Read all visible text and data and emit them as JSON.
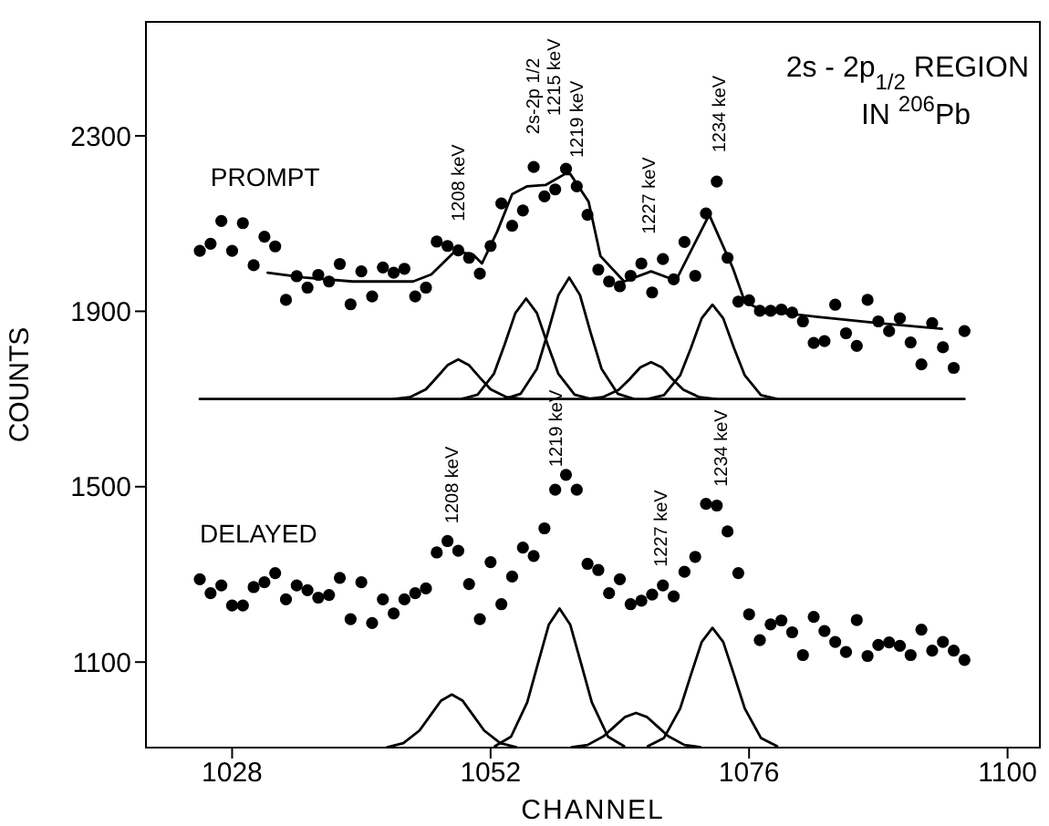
{
  "chart_data": {
    "type": "scatter",
    "title": "2s - 2p$_{1/2}$ REGION",
    "subtitle": "IN $^{206}$Pb",
    "xlabel": "CHANNEL",
    "ylabel": "COUNTS",
    "xlim": [
      1020,
      1103
    ],
    "xticks": [
      1028,
      1052,
      1076,
      1100
    ],
    "ylim": [
      905,
      2560
    ],
    "yticks": [
      1100,
      1500,
      1900,
      2300
    ],
    "grid": false,
    "legend": false,
    "line_style": "solid",
    "x": [
      1025,
      1026,
      1027,
      1028,
      1029,
      1030,
      1031,
      1032,
      1033,
      1034,
      1035,
      1036,
      1037,
      1038,
      1039,
      1040,
      1041,
      1042,
      1043,
      1044,
      1045,
      1046,
      1047,
      1048,
      1049,
      1050,
      1051,
      1052,
      1053,
      1054,
      1055,
      1056,
      1057,
      1058,
      1059,
      1060,
      1061,
      1062,
      1063,
      1064,
      1065,
      1066,
      1067,
      1068,
      1069,
      1070,
      1071,
      1072,
      1073,
      1074,
      1075,
      1076,
      1077,
      1078,
      1079,
      1080,
      1081,
      1082,
      1083,
      1084,
      1085,
      1086,
      1087,
      1088,
      1089,
      1090,
      1091,
      1092,
      1093,
      1094,
      1095,
      1096
    ],
    "series": [
      {
        "color": "#000000",
        "marker": "circle",
        "values": [
          2038,
          2054,
          2106,
          2038,
          2101,
          2005,
          2070,
          2048,
          1926,
          1980,
          1954,
          1983,
          1968,
          2008,
          1916,
          1991,
          1934,
          2000,
          1988,
          1997,
          1934,
          1954,
          2059,
          2049,
          2039,
          2022,
          1986,
          2049,
          2146,
          2095,
          2130,
          2229,
          2162,
          2178,
          2225,
          2185,
          2120,
          1995,
          1968,
          1957,
          1981,
          2009,
          1943,
          2019,
          1973,
          2058,
          1981,
          2123,
          2196,
          2022,
          1922,
          1925,
          1901,
          1901,
          1904,
          1897,
          1877,
          1828,
          1832,
          1915,
          1850,
          1821,
          1926,
          1877,
          1855,
          1884,
          1829,
          1779,
          1873,
          1818,
          1771,
          1855
        ]
      },
      {
        "color": "#000000",
        "marker": "circle",
        "values": [
          1289,
          1257,
          1275,
          1229,
          1229,
          1271,
          1282,
          1303,
          1243,
          1275,
          1264,
          1247,
          1253,
          1292,
          1198,
          1282,
          1189,
          1243,
          1211,
          1243,
          1257,
          1268,
          1350,
          1376,
          1354,
          1278,
          1198,
          1328,
          1232,
          1295,
          1361,
          1342,
          1405,
          1493,
          1527,
          1493,
          1324,
          1310,
          1257,
          1289,
          1232,
          1240,
          1254,
          1275,
          1250,
          1306,
          1340,
          1461,
          1457,
          1398,
          1303,
          1209,
          1150,
          1186,
          1195,
          1168,
          1116,
          1203,
          1171,
          1146,
          1123,
          1196,
          1114,
          1139,
          1145,
          1137,
          1116,
          1174,
          1126,
          1146,
          1126,
          1105
        ]
      },
      {
        "type": "line",
        "color": "#000000",
        "x": [
          1031.3,
          1034.7,
          1039.2,
          1044.8,
          1046.5,
          1048.7,
          1050.4,
          1051.2,
          1052.6,
          1054.0,
          1055.4,
          1057.1,
          1058.9,
          1059.4,
          1061.1,
          1062.2,
          1064.4,
          1066.9,
          1069.2,
          1072.3,
          1074.5,
          1075.6,
          1077.3,
          1082.4,
          1088.0,
          1093.9
        ],
        "values": [
          1988,
          1977,
          1968,
          1968,
          1984,
          2037,
          2029,
          2009,
          2081,
          2167,
          2185,
          2188,
          2213,
          2213,
          2150,
          2026,
          1968,
          1991,
          1970,
          2120,
          1998,
          1922,
          1901,
          1887,
          1873,
          1860
        ]
      },
      {
        "type": "line",
        "color": "#000000",
        "x": [
          1025,
          1096
        ],
        "values": [
          1700,
          1700
        ]
      },
      {
        "type": "line",
        "color": "#000000",
        "x": [
          1043,
          1044.5,
          1046,
          1047,
          1048,
          1049,
          1050,
          1051,
          1052,
          1053.5,
          1055
        ],
        "values": [
          1700,
          1704,
          1722,
          1749,
          1777,
          1790,
          1777,
          1749,
          1722,
          1704,
          1700
        ]
      },
      {
        "type": "line",
        "color": "#000000",
        "x": [
          1049.3,
          1050.8,
          1052.3,
          1053.3,
          1054.3,
          1055.3,
          1056.3,
          1057.3,
          1058.3,
          1059.8,
          1061.3
        ],
        "values": [
          1700,
          1710,
          1757,
          1824,
          1896,
          1929,
          1896,
          1824,
          1757,
          1710,
          1700
        ]
      },
      {
        "type": "line",
        "color": "#000000",
        "x": [
          1053.3,
          1054.8,
          1056.3,
          1057.3,
          1058.3,
          1059.3,
          1060.3,
          1061.3,
          1062.3,
          1063.8,
          1065.3
        ],
        "values": [
          1700,
          1712,
          1769,
          1850,
          1937,
          1977,
          1937,
          1850,
          1769,
          1712,
          1700
        ]
      },
      {
        "type": "line",
        "color": "#000000",
        "x": [
          1060.9,
          1062.4,
          1063.9,
          1064.9,
          1065.9,
          1066.9,
          1067.9,
          1068.9,
          1069.9,
          1071.4,
          1072.9
        ],
        "values": [
          1700,
          1704,
          1721,
          1745,
          1772,
          1784,
          1772,
          1745,
          1721,
          1704,
          1700
        ]
      },
      {
        "type": "line",
        "color": "#000000",
        "x": [
          1066.6,
          1068.1,
          1069.6,
          1070.6,
          1071.6,
          1072.6,
          1073.6,
          1074.6,
          1075.6,
          1077.1,
          1078.6
        ],
        "values": [
          1700,
          1709,
          1754,
          1816,
          1884,
          1915,
          1884,
          1816,
          1754,
          1709,
          1700
        ]
      },
      {
        "type": "line",
        "color": "#000000",
        "x": [
          1042.4,
          1043.9,
          1045.4,
          1046.4,
          1047.4,
          1048.4,
          1049.4,
          1050.4,
          1051.4,
          1052.9,
          1054.4
        ],
        "values": [
          906,
          915,
          944,
          978,
          1012,
          1026,
          1012,
          978,
          944,
          915,
          906
        ]
      },
      {
        "type": "line",
        "color": "#000000",
        "x": [
          1052.4,
          1053.9,
          1055.4,
          1056.4,
          1057.4,
          1058.4,
          1059.4,
          1060.4,
          1061.4,
          1062.9,
          1064.4
        ],
        "values": [
          908,
          930,
          1008,
          1097,
          1185,
          1222,
          1185,
          1097,
          1008,
          930,
          908
        ]
      },
      {
        "type": "line",
        "color": "#000000",
        "x": [
          1059.5,
          1061,
          1062.5,
          1063.5,
          1064.5,
          1065.5,
          1066.5,
          1067.5,
          1068.5,
          1070,
          1071.5
        ],
        "values": [
          906,
          911,
          931,
          953,
          975,
          984,
          975,
          953,
          931,
          911,
          906
        ]
      },
      {
        "type": "line",
        "color": "#000000",
        "x": [
          1066.6,
          1068.1,
          1069.6,
          1070.6,
          1071.6,
          1072.6,
          1073.6,
          1074.6,
          1075.6,
          1077.1,
          1078.6
        ],
        "values": [
          908,
          927,
          994,
          1071,
          1146,
          1178,
          1146,
          1071,
          994,
          927,
          908
        ]
      }
    ],
    "annotations": [
      "PROMPT",
      "DELAYED",
      "1208 keV",
      "2s-2p 1/2",
      "1215 keV",
      "1219 keV",
      "1227 keV",
      "1234 keV",
      "1208 keV",
      "1219 keV",
      "1227 keV",
      "1234 keV"
    ]
  }
}
